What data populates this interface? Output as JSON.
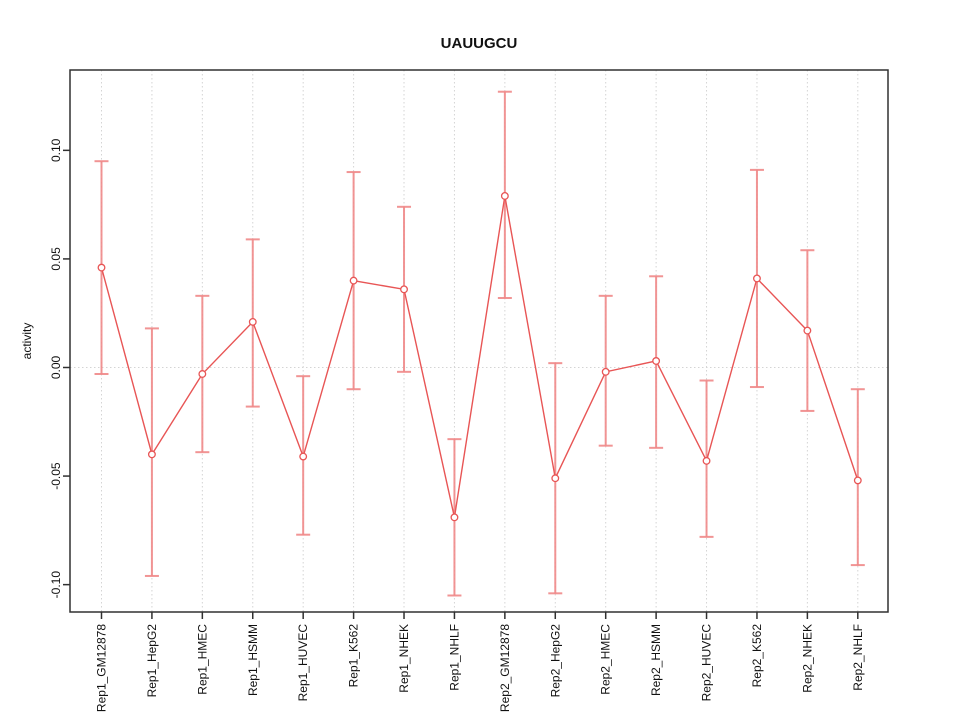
{
  "title": "UAUUGCU",
  "chart_data": {
    "type": "line",
    "title": "UAUUGCU",
    "xlabel": "",
    "ylabel": "activity",
    "categories": [
      "Rep1_GM12878",
      "Rep1_HepG2",
      "Rep1_HMEC",
      "Rep1_HSMM",
      "Rep1_HUVEC",
      "Rep1_K562",
      "Rep1_NHEK",
      "Rep1_NHLF",
      "Rep2_GM12878",
      "Rep2_HepG2",
      "Rep2_HMEC",
      "Rep2_HSMM",
      "Rep2_HUVEC",
      "Rep2_K562",
      "Rep2_NHEK",
      "Rep2_NHLF"
    ],
    "series": [
      {
        "name": "activity",
        "values": [
          0.046,
          -0.04,
          -0.003,
          0.021,
          -0.041,
          0.04,
          0.036,
          -0.069,
          0.079,
          -0.051,
          -0.002,
          0.003,
          -0.043,
          0.041,
          0.017,
          -0.052
        ],
        "lower": [
          -0.003,
          -0.096,
          -0.039,
          -0.018,
          -0.077,
          -0.01,
          -0.002,
          -0.105,
          0.032,
          -0.104,
          -0.036,
          -0.037,
          -0.078,
          -0.009,
          -0.02,
          -0.091
        ],
        "upper": [
          0.095,
          0.018,
          0.033,
          0.059,
          -0.004,
          0.09,
          0.074,
          -0.033,
          0.127,
          0.002,
          0.033,
          0.042,
          -0.006,
          0.091,
          0.054,
          -0.01
        ]
      }
    ],
    "yticks": [
      -0.1,
      -0.05,
      0.0,
      0.05,
      0.1
    ],
    "ytick_labels": [
      "-0.10",
      "-0.05",
      "0.00",
      "0.05",
      "0.10"
    ],
    "ylim": [
      -0.1126,
      0.137
    ],
    "grid": "dotted vertical line at every category; dotted horizontal line at 0",
    "legend_position": "none",
    "marker": "open-circle",
    "colors": {
      "line": "#e85555",
      "point_stroke": "#e85555",
      "point_fill": "#ffffff",
      "errorbar": "#f08888",
      "gridline": "#d4d4d4",
      "zero_line": "#d4d4d4",
      "axis": "#303030",
      "text": "#111111",
      "background": "#ffffff"
    }
  }
}
